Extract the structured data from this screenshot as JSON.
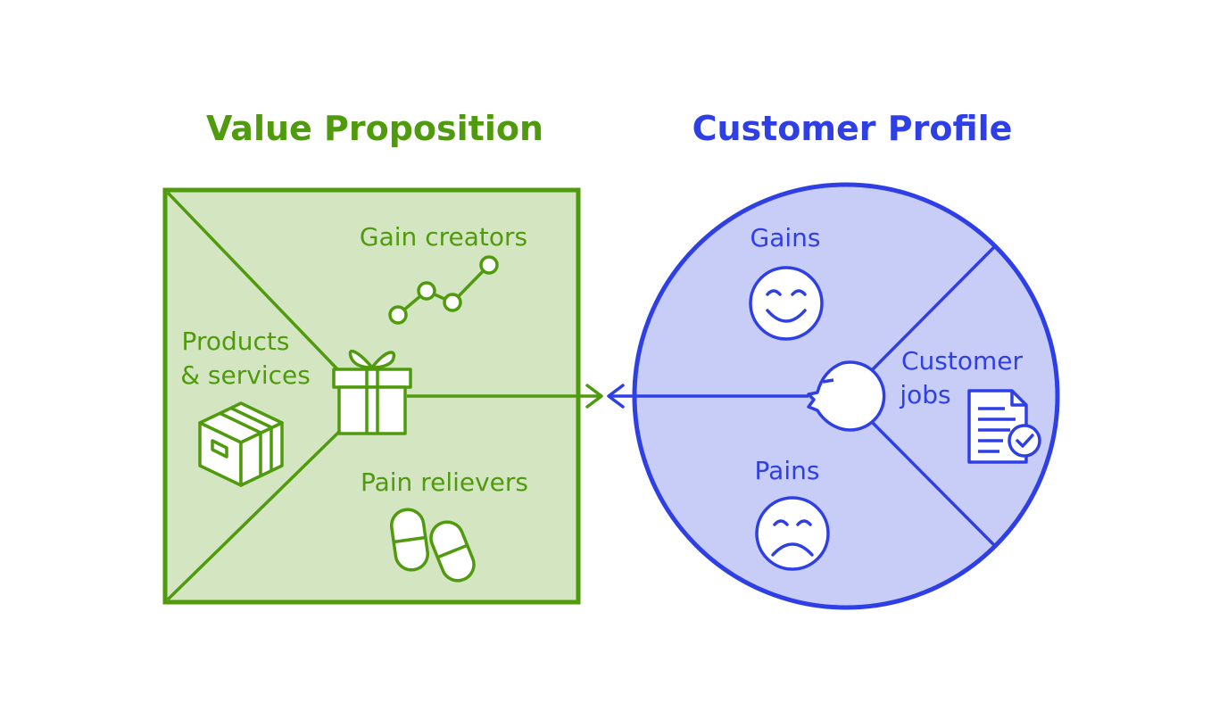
{
  "value_proposition": {
    "title": "Value Proposition",
    "gain_creators_label": "Gain creators",
    "products_label_line1": "Products",
    "products_label_line2": "& services",
    "pain_relievers_label": "Pain relievers",
    "colors": {
      "stroke": "#4f9a0d",
      "fill": "#d4e6c1",
      "text": "#4f9a0d"
    }
  },
  "customer_profile": {
    "title": "Customer Profile",
    "gains_label": "Gains",
    "customer_jobs_line1": "Customer",
    "customer_jobs_line2": "jobs",
    "pains_label": "Pains",
    "colors": {
      "stroke": "#2f3fe6",
      "fill": "#c8cdf7",
      "text": "#2f3fe6"
    }
  },
  "icons": {
    "gift": "gift-icon",
    "growth_chart": "growth-chart-icon",
    "box": "box-icon",
    "pills": "pills-icon",
    "happy_face": "happy-face-icon",
    "sad_face": "sad-face-icon",
    "customer_head": "customer-head-icon",
    "document_check": "document-check-icon"
  }
}
